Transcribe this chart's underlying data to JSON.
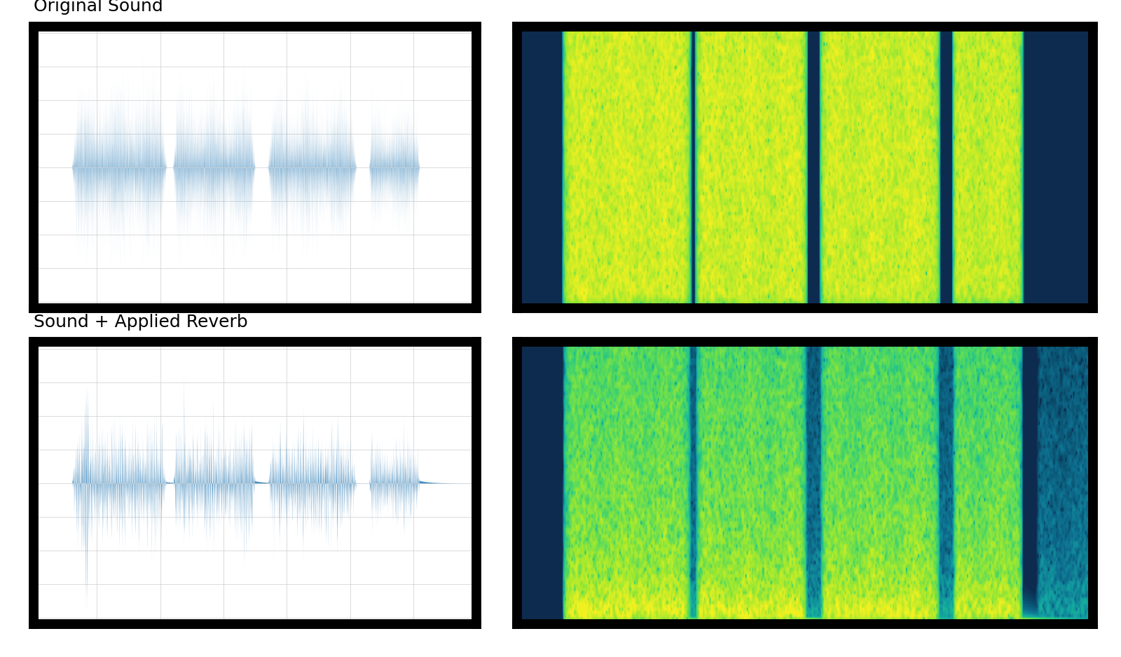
{
  "title_original": "Original Sound",
  "title_reverb": "Sound + Applied Reverb",
  "waveform_color": "#4a8fc0",
  "bg_color": "white",
  "border_color": "black",
  "border_width": 10,
  "grid_color": "#cccccc",
  "grid_alpha": 0.8,
  "waveform_xlim": [
    0,
    3.5
  ],
  "waveform_ylim": [
    -1.05,
    1.05
  ],
  "title_fontsize": 18,
  "tick_fontsize": 8,
  "cmap_spectrogram": "YlGnBu_r"
}
